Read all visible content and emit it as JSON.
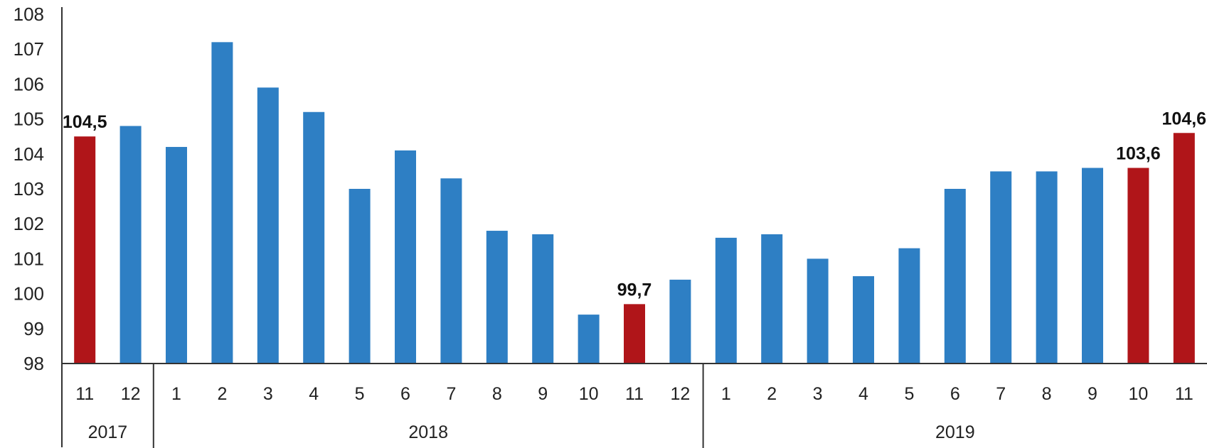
{
  "chart_data": {
    "type": "bar",
    "ylim": [
      98,
      108
    ],
    "yticks": [
      "98",
      "99",
      "100",
      "101",
      "102",
      "103",
      "104",
      "105",
      "106",
      "107",
      "108"
    ],
    "grid": false,
    "legend": "none",
    "colors": {
      "default": "#2e7fc4",
      "highlight": "#b01519"
    },
    "categories": [
      "11",
      "12",
      "1",
      "2",
      "3",
      "4",
      "5",
      "6",
      "7",
      "8",
      "9",
      "10",
      "11",
      "12",
      "1",
      "2",
      "3",
      "4",
      "5",
      "6",
      "7",
      "8",
      "9",
      "10",
      "11"
    ],
    "values": [
      104.5,
      104.8,
      104.2,
      107.2,
      105.9,
      105.2,
      103.0,
      104.1,
      103.3,
      101.8,
      101.7,
      99.4,
      99.7,
      100.4,
      101.6,
      101.7,
      101.0,
      100.5,
      101.3,
      103.0,
      103.5,
      103.5,
      103.6,
      103.6,
      104.6
    ],
    "highlighted": [
      true,
      false,
      false,
      false,
      false,
      false,
      false,
      false,
      false,
      false,
      false,
      false,
      true,
      false,
      false,
      false,
      false,
      false,
      false,
      false,
      false,
      false,
      false,
      true,
      true
    ],
    "data_labels": [
      "104,5",
      "",
      "",
      "",
      "",
      "",
      "",
      "",
      "",
      "",
      "",
      "",
      "99,7",
      "",
      "",
      "",
      "",
      "",
      "",
      "",
      "",
      "",
      "",
      "103,6",
      "104,6"
    ],
    "year_groups": [
      {
        "label": "2017",
        "count": 2
      },
      {
        "label": "2018",
        "count": 12
      },
      {
        "label": "2019",
        "count": 11
      }
    ]
  }
}
